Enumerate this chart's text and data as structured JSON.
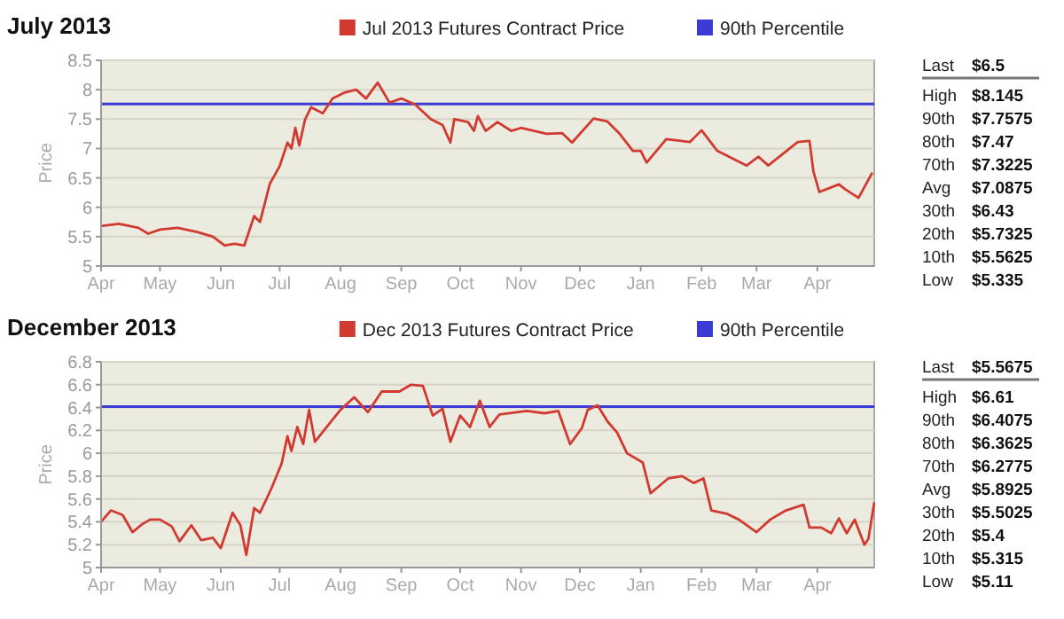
{
  "chart_data": [
    {
      "type": "line",
      "title": "July 2013",
      "ylabel": "Price",
      "legend": "top right",
      "grid": "y",
      "marker": "none",
      "line_style": "solid",
      "x": [
        "2012-04-01",
        "2012-04-10",
        "2012-04-20",
        "2012-04-25",
        "2012-05-01",
        "2012-05-10",
        "2012-05-20",
        "2012-05-28",
        "2012-06-03",
        "2012-06-08",
        "2012-06-13",
        "2012-06-18",
        "2012-06-21",
        "2012-06-26",
        "2012-07-01",
        "2012-07-05",
        "2012-07-07",
        "2012-07-09",
        "2012-07-11",
        "2012-07-14",
        "2012-07-17",
        "2012-07-23",
        "2012-07-28",
        "2012-08-03",
        "2012-08-09",
        "2012-08-14",
        "2012-08-20",
        "2012-08-26",
        "2012-09-01",
        "2012-09-08",
        "2012-09-16",
        "2012-09-22",
        "2012-09-26",
        "2012-09-28",
        "2012-10-05",
        "2012-10-08",
        "2012-10-10",
        "2012-10-14",
        "2012-10-20",
        "2012-10-27",
        "2012-11-01",
        "2012-11-14",
        "2012-11-22",
        "2012-11-27",
        "2012-12-08",
        "2012-12-15",
        "2012-12-21",
        "2012-12-28",
        "2013-01-01",
        "2013-01-04",
        "2013-01-14",
        "2013-01-26",
        "2013-02-01",
        "2013-02-09",
        "2013-02-24",
        "2013-03-02",
        "2013-03-07",
        "2013-03-22",
        "2013-03-28",
        "2013-03-30",
        "2013-04-02",
        "2013-04-12",
        "2013-04-15",
        "2013-04-22",
        "2013-04-29"
      ],
      "series": [
        {
          "name": "Jul 2013 Futures Contract Price",
          "color": "#d03a30",
          "values": [
            5.68,
            5.72,
            5.65,
            5.55,
            5.62,
            5.65,
            5.58,
            5.5,
            5.35,
            5.38,
            5.35,
            5.85,
            5.75,
            6.4,
            6.7,
            7.1,
            7.0,
            7.35,
            7.05,
            7.5,
            7.7,
            7.6,
            7.85,
            7.95,
            8.0,
            7.85,
            8.12,
            7.78,
            7.85,
            7.75,
            7.5,
            7.4,
            7.1,
            7.5,
            7.45,
            7.3,
            7.55,
            7.3,
            7.45,
            7.3,
            7.35,
            7.25,
            7.26,
            7.1,
            7.51,
            7.46,
            7.26,
            6.96,
            6.96,
            6.76,
            7.16,
            7.11,
            7.31,
            6.96,
            6.71,
            6.86,
            6.71,
            7.11,
            7.13,
            6.61,
            6.26,
            6.39,
            6.31,
            6.16,
            6.59
          ]
        }
      ],
      "ref_lines": [
        {
          "axis": "y",
          "value": 7.7575,
          "label": "90th Percentile",
          "color": "#3b3bd6"
        }
      ],
      "xlim": [
        "2012-04-01",
        "2013-04-30"
      ],
      "xticks": [
        {
          "value": "2012-04-01",
          "label": "Apr"
        },
        {
          "value": "2012-05-01",
          "label": "May"
        },
        {
          "value": "2012-06-01",
          "label": "Jun"
        },
        {
          "value": "2012-07-01",
          "label": "Jul"
        },
        {
          "value": "2012-08-01",
          "label": "Aug"
        },
        {
          "value": "2012-09-01",
          "label": "Sep"
        },
        {
          "value": "2012-10-01",
          "label": "Oct"
        },
        {
          "value": "2012-11-01",
          "label": "Nov"
        },
        {
          "value": "2012-12-01",
          "label": "Dec"
        },
        {
          "value": "2013-01-01",
          "label": "Jan"
        },
        {
          "value": "2013-02-01",
          "label": "Feb"
        },
        {
          "value": "2013-03-01",
          "label": "Mar"
        },
        {
          "value": "2013-04-01",
          "label": "Apr"
        }
      ],
      "ylim": [
        5,
        8.5
      ],
      "yticks": [
        5,
        5.5,
        6,
        6.5,
        7,
        7.5,
        8,
        8.5
      ]
    },
    {
      "type": "other",
      "categories": [
        "Last",
        "High",
        "90th",
        "80th",
        "70th",
        "Avg",
        "30th",
        "20th",
        "10th",
        "Low"
      ],
      "value_labels": [
        "$6.5",
        "$8.145",
        "$7.7575",
        "$7.47",
        "$7.3225",
        "$7.0875",
        "$6.43",
        "$5.7325",
        "$5.5625",
        "$5.335"
      ]
    },
    {
      "type": "line",
      "title": "December 2013",
      "ylabel": "Price",
      "legend": "top right",
      "grid": "y",
      "marker": "none",
      "line_style": "solid",
      "x": [
        "2012-04-01",
        "2012-04-06",
        "2012-04-12",
        "2012-04-17",
        "2012-04-22",
        "2012-04-26",
        "2012-05-01",
        "2012-05-07",
        "2012-05-11",
        "2012-05-17",
        "2012-05-22",
        "2012-05-28",
        "2012-06-01",
        "2012-06-07",
        "2012-06-11",
        "2012-06-14",
        "2012-06-18",
        "2012-06-21",
        "2012-06-27",
        "2012-07-02",
        "2012-07-05",
        "2012-07-07",
        "2012-07-10",
        "2012-07-13",
        "2012-07-16",
        "2012-07-19",
        "2012-07-25",
        "2012-08-01",
        "2012-08-08",
        "2012-08-15",
        "2012-08-22",
        "2012-08-31",
        "2012-09-06",
        "2012-09-12",
        "2012-09-17",
        "2012-09-22",
        "2012-09-26",
        "2012-10-01",
        "2012-10-06",
        "2012-10-11",
        "2012-10-16",
        "2012-10-21",
        "2012-11-04",
        "2012-11-13",
        "2012-11-20",
        "2012-11-26",
        "2012-12-02",
        "2012-12-05",
        "2012-12-10",
        "2012-12-15",
        "2012-12-20",
        "2012-12-25",
        "2013-01-02",
        "2013-01-06",
        "2013-01-15",
        "2013-01-22",
        "2013-01-28",
        "2013-02-02",
        "2013-02-06",
        "2013-02-14",
        "2013-02-20",
        "2013-03-01",
        "2013-03-08",
        "2013-03-16",
        "2013-03-25",
        "2013-03-28",
        "2013-04-03",
        "2013-04-08",
        "2013-04-12",
        "2013-04-16",
        "2013-04-20",
        "2013-04-25",
        "2013-04-27",
        "2013-04-30"
      ],
      "series": [
        {
          "name": "Dec 2013 Futures Contract Price",
          "color": "#d03a30",
          "values": [
            5.4,
            5.5,
            5.46,
            5.31,
            5.38,
            5.42,
            5.42,
            5.36,
            5.23,
            5.37,
            5.24,
            5.26,
            5.17,
            5.48,
            5.37,
            5.11,
            5.52,
            5.48,
            5.7,
            5.91,
            6.15,
            6.02,
            6.23,
            6.08,
            6.38,
            6.1,
            6.23,
            6.38,
            6.49,
            6.36,
            6.54,
            6.54,
            6.6,
            6.59,
            6.33,
            6.39,
            6.1,
            6.33,
            6.23,
            6.46,
            6.23,
            6.34,
            6.37,
            6.35,
            6.37,
            6.08,
            6.22,
            6.38,
            6.42,
            6.28,
            6.18,
            6.0,
            5.92,
            5.65,
            5.78,
            5.8,
            5.74,
            5.78,
            5.5,
            5.47,
            5.42,
            5.31,
            5.42,
            5.5,
            5.55,
            5.35,
            5.35,
            5.3,
            5.43,
            5.3,
            5.42,
            5.2,
            5.25,
            5.57
          ]
        }
      ],
      "ref_lines": [
        {
          "axis": "y",
          "value": 6.4075,
          "label": "90th Percentile",
          "color": "#3b3bd6"
        }
      ],
      "xlim": [
        "2012-04-01",
        "2013-04-30"
      ],
      "xticks": [
        {
          "value": "2012-04-01",
          "label": "Apr"
        },
        {
          "value": "2012-05-01",
          "label": "May"
        },
        {
          "value": "2012-06-01",
          "label": "Jun"
        },
        {
          "value": "2012-07-01",
          "label": "Jul"
        },
        {
          "value": "2012-08-01",
          "label": "Aug"
        },
        {
          "value": "2012-09-01",
          "label": "Sep"
        },
        {
          "value": "2012-10-01",
          "label": "Oct"
        },
        {
          "value": "2012-11-01",
          "label": "Nov"
        },
        {
          "value": "2012-12-01",
          "label": "Dec"
        },
        {
          "value": "2013-01-01",
          "label": "Jan"
        },
        {
          "value": "2013-02-01",
          "label": "Feb"
        },
        {
          "value": "2013-03-01",
          "label": "Mar"
        },
        {
          "value": "2013-04-01",
          "label": "Apr"
        }
      ],
      "ylim": [
        5,
        6.8
      ],
      "yticks": [
        5,
        5.2,
        5.4,
        5.6,
        5.8,
        6,
        6.2,
        6.4,
        6.6,
        6.8
      ]
    },
    {
      "type": "other",
      "categories": [
        "Last",
        "High",
        "90th",
        "80th",
        "70th",
        "Avg",
        "30th",
        "20th",
        "10th",
        "Low"
      ],
      "value_labels": [
        "$5.5675",
        "$6.61",
        "$6.4075",
        "$6.3625",
        "$6.2775",
        "$5.8925",
        "$5.5025",
        "$5.4",
        "$5.315",
        "$5.11"
      ]
    }
  ]
}
